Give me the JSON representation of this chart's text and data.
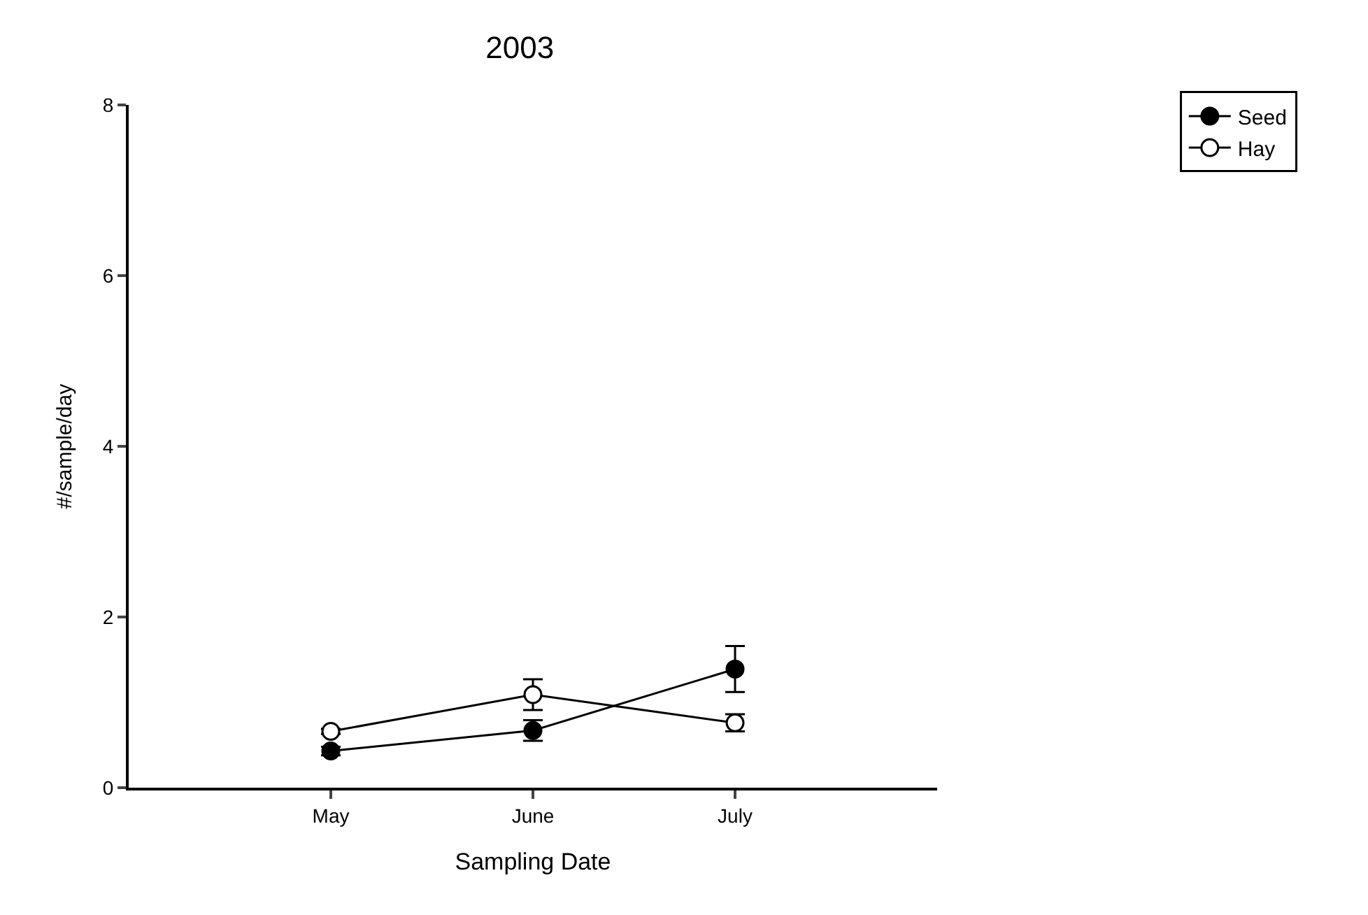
{
  "chart_data": {
    "type": "line",
    "title": "2003",
    "xlabel": "Sampling Date",
    "ylabel": "#/sample/day",
    "categories": [
      "May",
      "June",
      "July"
    ],
    "series": [
      {
        "name": "Seed",
        "color": "#000000",
        "values": [
          0.43,
          0.67,
          1.39
        ],
        "errors": [
          0.05,
          0.12,
          0.27
        ]
      },
      {
        "name": "Hay",
        "color": "#000000",
        "values": [
          0.66,
          1.09,
          0.76
        ],
        "errors": [
          0.03,
          0.18,
          0.1
        ]
      }
    ],
    "ylim": [
      0,
      8
    ],
    "yticks": [
      0,
      2,
      4,
      6,
      8
    ],
    "grid": false,
    "legend": "top right",
    "marker": "circle",
    "line_style": "solid"
  }
}
